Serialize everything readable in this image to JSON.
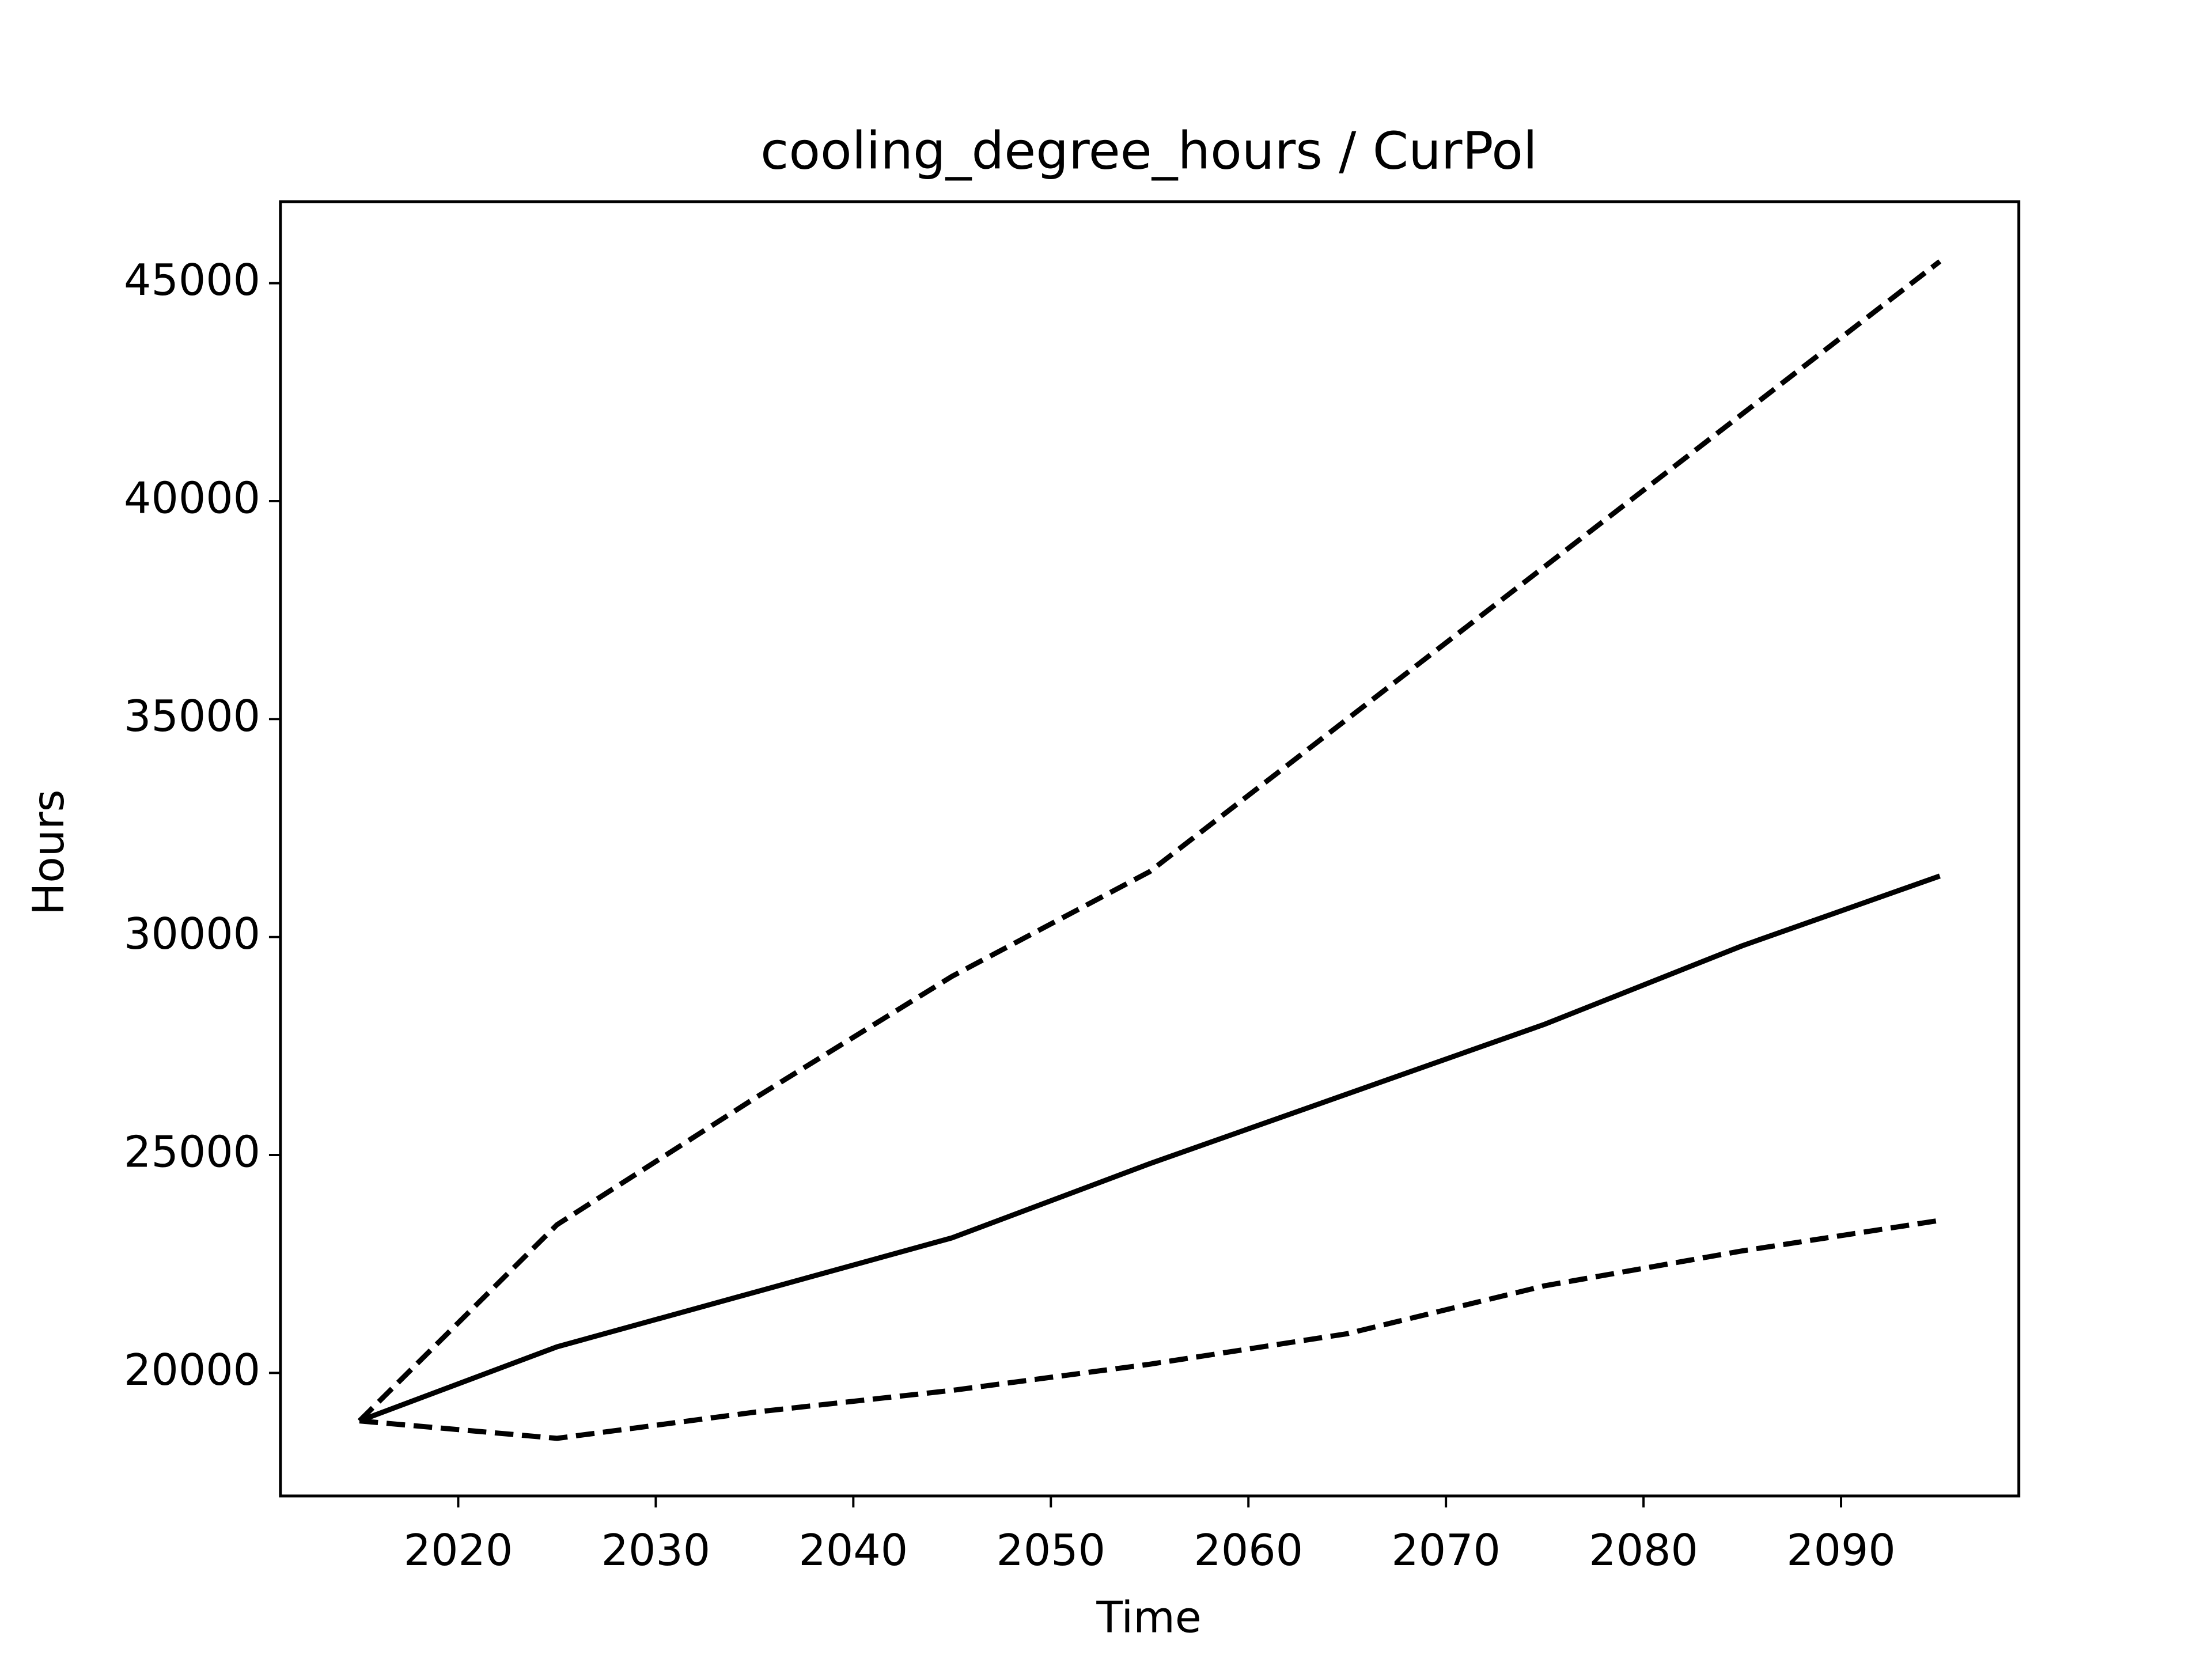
{
  "chart_data": {
    "type": "line",
    "title": "cooling_degree_hours / CurPol",
    "x_label": "Time",
    "y_label": "Hours",
    "x": [
      2015,
      2025,
      2035,
      2045,
      2055,
      2065,
      2075,
      2085,
      2095
    ],
    "series": [
      {
        "color": "#000000",
        "dashed": true,
        "values": [
          18900,
          23400,
          26300,
          29100,
          31500,
          35000,
          38500,
          42000,
          45500
        ]
      },
      {
        "color": "#000000",
        "dashed": false,
        "values": [
          18900,
          20600,
          21850,
          23100,
          24800,
          26400,
          28000,
          29800,
          31400
        ]
      },
      {
        "color": "#000000",
        "dashed": true,
        "values": [
          18900,
          18500,
          19100,
          19600,
          20200,
          20900,
          22000,
          22800,
          23500
        ]
      }
    ],
    "xlim": [
      2011,
      2099
    ],
    "xticks": [
      2020,
      2030,
      2040,
      2050,
      2060,
      2070,
      2080,
      2090
    ],
    "ylim": [
      17178,
      46870
    ],
    "yticks": [
      20000,
      25000,
      30000,
      35000,
      40000,
      45000
    ],
    "grid": false
  }
}
